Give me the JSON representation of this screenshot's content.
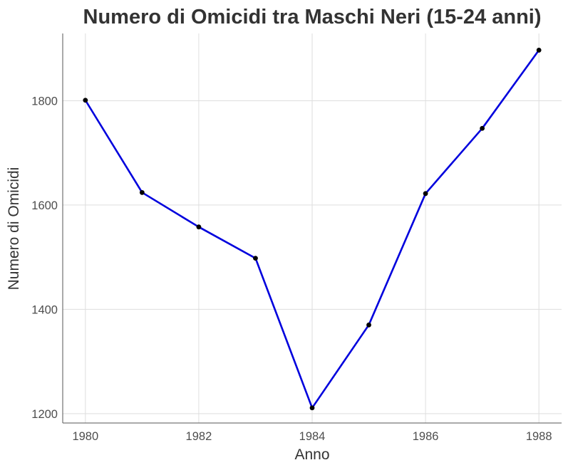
{
  "chart_data": {
    "type": "line",
    "title": "Numero di Omicidi tra Maschi Neri (15-24 anni)",
    "xlabel": "Anno",
    "ylabel": "Numero di Omicidi",
    "x": [
      1980,
      1981,
      1982,
      1983,
      1984,
      1985,
      1986,
      1987,
      1988
    ],
    "series": [
      {
        "values": [
          1801,
          1624,
          1558,
          1498,
          1211,
          1370,
          1622,
          1747,
          1897
        ]
      }
    ],
    "xlim": [
      1979.6,
      1988.4
    ],
    "ylim": [
      1182,
      1929
    ],
    "xticks": [
      1980,
      1982,
      1984,
      1986,
      1988
    ],
    "yticks": [
      1200,
      1400,
      1600,
      1800
    ],
    "grid": true,
    "legend": "none",
    "line_color": "#0000dd",
    "point_color": "#000000"
  }
}
